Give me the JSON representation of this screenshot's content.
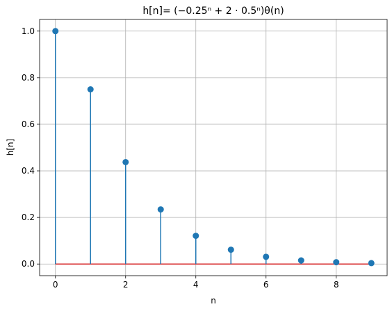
{
  "chart_data": {
    "type": "stem",
    "title": "h[n]= (−0.25ⁿ + 2 · 0.5ⁿ)θ(n)",
    "xlabel": "n",
    "ylabel": "h[n]",
    "x": [
      0,
      1,
      2,
      3,
      4,
      5,
      6,
      7,
      8,
      9
    ],
    "y": [
      1.0,
      0.75,
      0.4375,
      0.234375,
      0.12109375,
      0.0615234375,
      0.031005859375,
      0.015563964844,
      0.007797241211,
      0.003902435303
    ],
    "xlim": [
      -0.45,
      9.45
    ],
    "ylim": [
      -0.05,
      1.05
    ],
    "xticks": [
      0,
      2,
      4,
      6,
      8
    ],
    "yticks": [
      0.0,
      0.2,
      0.4,
      0.6,
      0.8,
      1.0
    ],
    "xtick_labels": [
      "0",
      "2",
      "4",
      "6",
      "8"
    ],
    "ytick_labels": [
      "0.0",
      "0.2",
      "0.4",
      "0.6",
      "0.8",
      "1.0"
    ],
    "grid": true,
    "colors": {
      "stem": "#1f77b4",
      "marker": "#1f77b4",
      "baseline": "#d62728",
      "grid": "#b0b0b0"
    }
  }
}
